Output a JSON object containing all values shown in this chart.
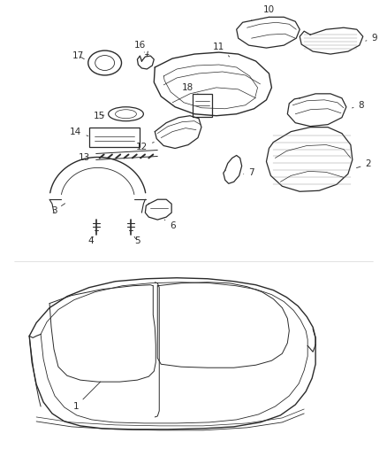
{
  "background_color": "#ffffff",
  "label_color": "#000000",
  "label_fontsize": 7.5,
  "fig_width": 4.38,
  "fig_height": 5.33,
  "dpi": 100
}
